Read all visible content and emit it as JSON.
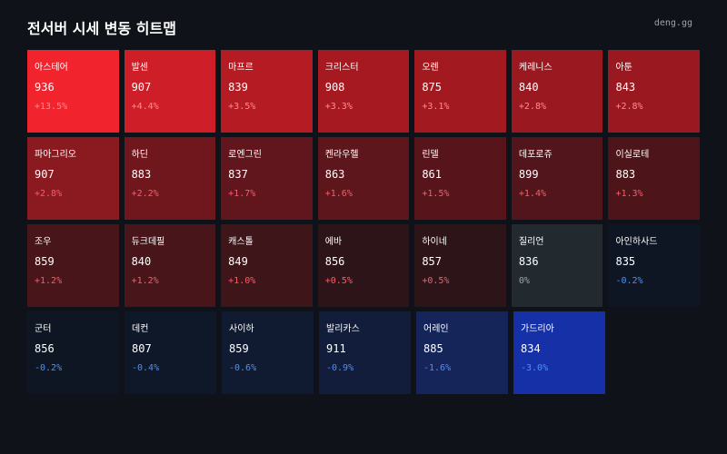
{
  "header": {
    "title": "전서버 시세 변동 히트맵",
    "brand": "deng.gg"
  },
  "rows": [
    [
      {
        "name": "아스테어",
        "price": "936",
        "change": "+13.5%",
        "dir": "up",
        "bg": "#f1232c"
      },
      {
        "name": "발센",
        "price": "907",
        "change": "+4.4%",
        "dir": "up",
        "bg": "#ce1e27"
      },
      {
        "name": "마프르",
        "price": "839",
        "change": "+3.5%",
        "dir": "up",
        "bg": "#b41b22"
      },
      {
        "name": "크리스터",
        "price": "908",
        "change": "+3.3%",
        "dir": "up",
        "bg": "#a71921"
      },
      {
        "name": "오렌",
        "price": "875",
        "change": "+3.1%",
        "dir": "up",
        "bg": "#a21920"
      },
      {
        "name": "케레니스",
        "price": "840",
        "change": "+2.8%",
        "dir": "up",
        "bg": "#9a1820"
      },
      {
        "name": "아툰",
        "price": "843",
        "change": "+2.8%",
        "dir": "up",
        "bg": "#9a1820"
      }
    ],
    [
      {
        "name": "파아그리오",
        "price": "907",
        "change": "+2.8%",
        "dir": "up",
        "bg": "#8a1920"
      },
      {
        "name": "하딘",
        "price": "883",
        "change": "+2.2%",
        "dir": "up",
        "bg": "#70171e"
      },
      {
        "name": "로엔그린",
        "price": "837",
        "change": "+1.7%",
        "dir": "up",
        "bg": "#61161d"
      },
      {
        "name": "켄라우헬",
        "price": "863",
        "change": "+1.6%",
        "dir": "up",
        "bg": "#5c161c"
      },
      {
        "name": "린델",
        "price": "861",
        "change": "+1.5%",
        "dir": "up",
        "bg": "#57151b"
      },
      {
        "name": "데포로쥬",
        "price": "899",
        "change": "+1.4%",
        "dir": "up",
        "bg": "#52151b"
      },
      {
        "name": "이실로테",
        "price": "883",
        "change": "+1.3%",
        "dir": "up",
        "bg": "#4d151a"
      }
    ],
    [
      {
        "name": "조우",
        "price": "859",
        "change": "+1.2%",
        "dir": "up",
        "bg": "#48151a"
      },
      {
        "name": "듀크데필",
        "price": "840",
        "change": "+1.2%",
        "dir": "up",
        "bg": "#48151a"
      },
      {
        "name": "캐스톨",
        "price": "849",
        "change": "+1.0%",
        "dir": "up",
        "bg": "#3e1519"
      },
      {
        "name": "에바",
        "price": "856",
        "change": "+0.5%",
        "dir": "up",
        "bg": "#2c1419"
      },
      {
        "name": "하이네",
        "price": "857",
        "change": "+0.5%",
        "dir": "up",
        "bg": "#2c1419"
      },
      {
        "name": "질리언",
        "price": "836",
        "change": "0%",
        "dir": "flat",
        "bg": "#22292f"
      },
      {
        "name": "아인하사드",
        "price": "835",
        "change": "-0.2%",
        "dir": "down",
        "bg": "#0f1623"
      }
    ],
    [
      {
        "name": "군터",
        "price": "856",
        "change": "-0.2%",
        "dir": "down",
        "bg": "#0f1623"
      },
      {
        "name": "데컨",
        "price": "807",
        "change": "-0.4%",
        "dir": "down",
        "bg": "#0f1829"
      },
      {
        "name": "사이하",
        "price": "859",
        "change": "-0.6%",
        "dir": "down",
        "bg": "#101b31"
      },
      {
        "name": "발리카스",
        "price": "911",
        "change": "-0.9%",
        "dir": "down",
        "bg": "#111d3a"
      },
      {
        "name": "어레인",
        "price": "885",
        "change": "-1.6%",
        "dir": "down",
        "bg": "#15255a"
      },
      {
        "name": "가드리아",
        "price": "834",
        "change": "-3.0%",
        "dir": "down",
        "bg": "#1631a8"
      }
    ]
  ]
}
